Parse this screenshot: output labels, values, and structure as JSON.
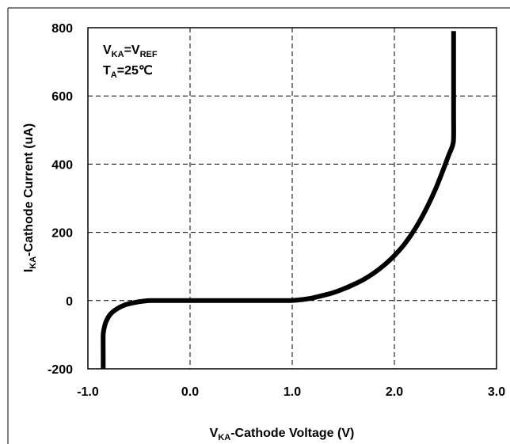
{
  "chart_data": {
    "type": "line",
    "title": "",
    "xlabel": {
      "main": "V",
      "sub": "KA",
      "rest": "-Cathode Voltage (V)"
    },
    "ylabel": {
      "main": "I",
      "sub": "KA",
      "rest": "-Cathode Current (uA)"
    },
    "xlim": [
      -1.0,
      3.0
    ],
    "ylim": [
      -200,
      800
    ],
    "x_ticks": [
      -1.0,
      0.0,
      1.0,
      2.0,
      3.0
    ],
    "x_tick_labels": [
      "-1.0",
      "0.0",
      "1.0",
      "2.0",
      "3.0"
    ],
    "y_ticks": [
      -200,
      0,
      200,
      400,
      600,
      800
    ],
    "y_tick_labels": [
      "-200",
      "0",
      "200",
      "400",
      "600",
      "800"
    ],
    "grid": true,
    "annotations": {
      "line1": {
        "a": "V",
        "a_sub": "KA",
        "eq": "=V",
        "b_sub": "REF"
      },
      "line2": {
        "a": "T",
        "a_sub": "A",
        "rest": "=25℃"
      }
    },
    "series": [
      {
        "color": "#000000",
        "points": [
          [
            -0.85,
            -200
          ],
          [
            -0.85,
            -150
          ],
          [
            -0.85,
            -100
          ],
          [
            -0.84,
            -80
          ],
          [
            -0.82,
            -60
          ],
          [
            -0.78,
            -40
          ],
          [
            -0.72,
            -25
          ],
          [
            -0.64,
            -13
          ],
          [
            -0.55,
            -6
          ],
          [
            -0.45,
            -1.5
          ],
          [
            -0.38,
            0
          ],
          [
            -0.2,
            0
          ],
          [
            0.0,
            0
          ],
          [
            0.5,
            0
          ],
          [
            0.95,
            0
          ],
          [
            1.0,
            0.5
          ],
          [
            1.1,
            3
          ],
          [
            1.2,
            8
          ],
          [
            1.3,
            15
          ],
          [
            1.4,
            23
          ],
          [
            1.5,
            34
          ],
          [
            1.6,
            47
          ],
          [
            1.7,
            62
          ],
          [
            1.8,
            81
          ],
          [
            1.9,
            104
          ],
          [
            2.0,
            132
          ],
          [
            2.1,
            166
          ],
          [
            2.2,
            209
          ],
          [
            2.3,
            262
          ],
          [
            2.4,
            325
          ],
          [
            2.48,
            385
          ],
          [
            2.53,
            425
          ],
          [
            2.57,
            455
          ],
          [
            2.58,
            480
          ],
          [
            2.58,
            550
          ],
          [
            2.58,
            650
          ],
          [
            2.58,
            740
          ],
          [
            2.58,
            790
          ]
        ]
      }
    ]
  }
}
